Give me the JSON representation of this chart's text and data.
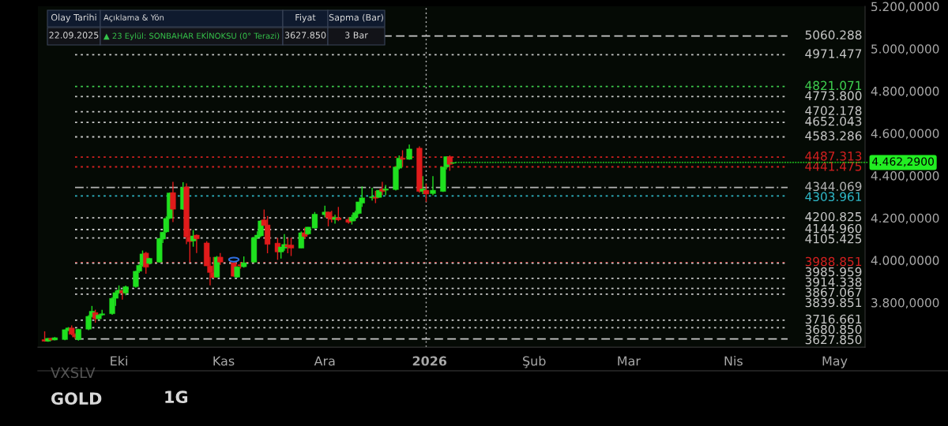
{
  "chart_data": {
    "type": "candlestick",
    "x": [
      "2025-09-09",
      "2025-09-10",
      "2025-09-11",
      "2025-09-12",
      "2025-09-15",
      "2025-09-16",
      "2025-09-17",
      "2025-09-18",
      "2025-09-19",
      "2025-09-22",
      "2025-09-23",
      "2025-09-24",
      "2025-09-25",
      "2025-09-26",
      "2025-09-29",
      "2025-09-30",
      "2025-10-01",
      "2025-10-02",
      "2025-10-03",
      "2025-10-06",
      "2025-10-07",
      "2025-10-08",
      "2025-10-09",
      "2025-10-10",
      "2025-10-13",
      "2025-10-14",
      "2025-10-15",
      "2025-10-16",
      "2025-10-17",
      "2025-10-20",
      "2025-10-21",
      "2025-10-22",
      "2025-10-23",
      "2025-10-24",
      "2025-10-27",
      "2025-10-28",
      "2025-10-29",
      "2025-10-30",
      "2025-10-31",
      "2025-11-04",
      "2025-11-05",
      "2025-11-06",
      "2025-11-07",
      "2025-11-10",
      "2025-11-11",
      "2025-11-12",
      "2025-11-13",
      "2025-11-14",
      "2025-11-17",
      "2025-11-18",
      "2025-11-19",
      "2025-11-20",
      "2025-11-21",
      "2025-11-24",
      "2025-11-25",
      "2025-11-26",
      "2025-11-28",
      "2025-12-01",
      "2025-12-02",
      "2025-12-03",
      "2025-12-04",
      "2025-12-05",
      "2025-12-08",
      "2025-12-09",
      "2025-12-10",
      "2025-12-11",
      "2025-12-12",
      "2025-12-15",
      "2025-12-16",
      "2025-12-17",
      "2025-12-18",
      "2025-12-19",
      "2025-12-22",
      "2025-12-23",
      "2025-12-24",
      "2025-12-26",
      "2025-12-29",
      "2025-12-30",
      "2025-12-31",
      "2026-01-02",
      "2026-01-05",
      "2026-01-06",
      "2026-01-07",
      "2026-01-08"
    ],
    "ohlc": [
      [
        3625,
        3664,
        3615,
        3617
      ],
      [
        3617,
        3632,
        3615,
        3631
      ],
      [
        3631,
        3634,
        3620,
        3623
      ],
      [
        3623,
        3637,
        3621,
        3634
      ],
      [
        3625,
        3672,
        3622,
        3672
      ],
      [
        3668,
        3684,
        3665,
        3680
      ],
      [
        3680,
        3692,
        3645,
        3650
      ],
      [
        3650,
        3655,
        3628,
        3637
      ],
      [
        3625,
        3676,
        3620,
        3674
      ],
      [
        3674,
        3740,
        3670,
        3735
      ],
      [
        3735,
        3784,
        3730,
        3759
      ],
      [
        3753,
        3766,
        3705,
        3723
      ],
      [
        3723,
        3745,
        3718,
        3741
      ],
      [
        3741,
        3766,
        3738,
        3747
      ],
      [
        3747,
        3825,
        3742,
        3820
      ],
      [
        3820,
        3857,
        3784,
        3847
      ],
      [
        3847,
        3881,
        3842,
        3859
      ],
      [
        3857,
        3860,
        3814,
        3845
      ],
      [
        3845,
        3880,
        3835,
        3875
      ],
      [
        3875,
        3950,
        3870,
        3948
      ],
      [
        3948,
        3980,
        3940,
        3976
      ],
      [
        3976,
        4046,
        3970,
        4030
      ],
      [
        4034,
        4040,
        3936,
        3967
      ],
      [
        3985,
        4012,
        3980,
        4009
      ],
      [
        3991,
        4105,
        3988,
        4103
      ],
      [
        4100,
        4134,
        4082,
        4133
      ],
      [
        4134,
        4207,
        4130,
        4198
      ],
      [
        4198,
        4320,
        4195,
        4318
      ],
      [
        4320,
        4371,
        4180,
        4241
      ],
      [
        4241,
        4369,
        4238,
        4344
      ],
      [
        4347,
        4363,
        4076,
        4110
      ],
      [
        4110,
        4149,
        3991,
        4088
      ],
      [
        4091,
        4143,
        4064,
        4115
      ],
      [
        4119,
        4122,
        4034,
        4101
      ],
      [
        4082,
        4090,
        3973,
        3973
      ],
      [
        3973,
        4015,
        3881,
        3942
      ],
      [
        3942,
        4015,
        3915,
        3918
      ],
      [
        3920,
        4020,
        3918,
        4015
      ],
      [
        4015,
        4034,
        3978,
        3991
      ],
      [
        3988,
        3990,
        3923,
        3924
      ],
      [
        3920,
        3972,
        3918,
        3969
      ],
      [
        3979,
        3991,
        3960,
        3973
      ],
      [
        3969,
        4018,
        3965,
        3988
      ],
      [
        3991,
        4110,
        3988,
        4107
      ],
      [
        4107,
        4137,
        4100,
        4119
      ],
      [
        4115,
        4190,
        4110,
        4186
      ],
      [
        4191,
        4240,
        4164,
        4164
      ],
      [
        4167,
        4209,
        4033,
        4075
      ],
      [
        4081,
        4106,
        4002,
        4039
      ],
      [
        4039,
        4063,
        4008,
        4063
      ],
      [
        4057,
        4124,
        4045,
        4075
      ],
      [
        4072,
        4106,
        4033,
        4063
      ],
      [
        4072,
        4106,
        4020,
        4057
      ],
      [
        4057,
        4136,
        4057,
        4130
      ],
      [
        4130,
        4154,
        4100,
        4112
      ],
      [
        4124,
        4157,
        4120,
        4157
      ],
      [
        4152,
        4228,
        4150,
        4218
      ],
      [
        4215,
        4258,
        4203,
        4228
      ],
      [
        4228,
        4230,
        4160,
        4201
      ],
      [
        4206,
        4234,
        4179,
        4193
      ],
      [
        4193,
        4215,
        4173,
        4203
      ],
      [
        4201,
        4252,
        4185,
        4191
      ],
      [
        4193,
        4203,
        4173,
        4179
      ],
      [
        4185,
        4215,
        4169,
        4203
      ],
      [
        4201,
        4234,
        4185,
        4225
      ],
      [
        4221,
        4276,
        4218,
        4276
      ],
      [
        4270,
        4349,
        4252,
        4295
      ],
      [
        4295,
        4343,
        4282,
        4301
      ],
      [
        4298,
        4328,
        4270,
        4293
      ],
      [
        4297,
        4331,
        4295,
        4331
      ],
      [
        4337,
        4371,
        4307,
        4325
      ],
      [
        4331,
        4356,
        4307,
        4337
      ],
      [
        4334,
        4441,
        4330,
        4441
      ],
      [
        4435,
        4496,
        4429,
        4483
      ],
      [
        4483,
        4520,
        4441,
        4477
      ],
      [
        4477,
        4547,
        4475,
        4526
      ],
      [
        4530,
        4538,
        4319,
        4325
      ],
      [
        4325,
        4398,
        4313,
        4337
      ],
      [
        4331,
        4362,
        4276,
        4313
      ],
      [
        4315,
        4398,
        4307,
        4331
      ],
      [
        4325,
        4441,
        4323,
        4441
      ],
      [
        4441,
        4490,
        4429,
        4490
      ],
      [
        4490,
        4496,
        4423,
        4453
      ],
      [
        4459,
        4462,
        4455,
        4462
      ]
    ],
    "colors": [
      "#e01b1b",
      "#1fe01f",
      "#e01b1b",
      "#1fe01f",
      "#1fe01f",
      "#1fe01f",
      "#e01b1b",
      "#e01b1b",
      "#1fe01f",
      "#1fe01f",
      "#1fe01f",
      "#e01b1b",
      "#1fe01f",
      "#1fe01f",
      "#1fe01f",
      "#1fe01f",
      "#1fe01f",
      "#e01b1b",
      "#1fe01f",
      "#1fe01f",
      "#1fe01f",
      "#1fe01f",
      "#e01b1b",
      "#1fe01f",
      "#1fe01f",
      "#1fe01f",
      "#1fe01f",
      "#1fe01f",
      "#e01b1b",
      "#1fe01f",
      "#e01b1b",
      "#e01b1b",
      "#1fe01f",
      "#e01b1b",
      "#e01b1b",
      "#e01b1b",
      "#e01b1b",
      "#1fe01f",
      "#e01b1b",
      "#e01b1b",
      "#1fe01f",
      "#e01b1b",
      "#1fe01f",
      "#1fe01f",
      "#1fe01f",
      "#1fe01f",
      "#e01b1b",
      "#e01b1b",
      "#e01b1b",
      "#1fe01f",
      "#1fe01f",
      "#e01b1b",
      "#e01b1b",
      "#1fe01f",
      "#e01b1b",
      "#1fe01f",
      "#1fe01f",
      "#1fe01f",
      "#e01b1b",
      "#e01b1b",
      "#1fe01f",
      "#e01b1b",
      "#e01b1b",
      "#1fe01f",
      "#1fe01f",
      "#1fe01f",
      "#1fe01f",
      "#1fe01f",
      "#e01b1b",
      "#1fe01f",
      "#e01b1b",
      "#1fe01f",
      "#1fe01f",
      "#1fe01f",
      "#e01b1b",
      "#1fe01f",
      "#e01b1b",
      "#1fe01f",
      "#e01b1b",
      "#1fe01f",
      "#1fe01f",
      "#1fe01f",
      "#e01b1b",
      "#1fe01f"
    ],
    "xlim": [
      "2025-09-07",
      "2026-05-10"
    ],
    "xticks": [
      {
        "value": "2025-10-01",
        "label": "Eki"
      },
      {
        "value": "2025-11-01",
        "label": "Kas"
      },
      {
        "value": "2025-12-01",
        "label": "Ara"
      },
      {
        "value": "2026-01-01",
        "label": "2026"
      },
      {
        "value": "2026-02-01",
        "label": "Şub"
      },
      {
        "value": "2026-03-01",
        "label": "Mar"
      },
      {
        "value": "2026-04-01",
        "label": "Nis"
      },
      {
        "value": "2026-05-01",
        "label": "May"
      }
    ],
    "ylim": [
      3589,
      5200
    ],
    "yticks": [
      {
        "value": 3800,
        "label": "3.800,0000"
      },
      {
        "value": 4000,
        "label": "4.000,0000"
      },
      {
        "value": 4200,
        "label": "4.200,0000"
      },
      {
        "value": 4400,
        "label": "4.400,0000"
      },
      {
        "value": 4600,
        "label": "4.600,0000"
      },
      {
        "value": 4800,
        "label": "4.800,0000"
      },
      {
        "value": 5000,
        "label": "5.000,0000"
      },
      {
        "value": 5200,
        "label": "5.200,0000"
      }
    ],
    "grid": false,
    "ref_lines": [
      {
        "axis": "y",
        "value": 5060.288,
        "label": "5060.288",
        "color": "#c8c8c8",
        "line_style": "dashed"
      },
      {
        "axis": "y",
        "value": 4971.477,
        "label": "4971.477",
        "color": "#c8c8c8",
        "line_style": "dotted"
      },
      {
        "axis": "y",
        "value": 4821.071,
        "label": "4821.071",
        "color": "#3fcf4f",
        "line_style": "dotted"
      },
      {
        "axis": "y",
        "value": 4773.8,
        "label": "4773.800",
        "color": "#c8c8c8",
        "line_style": "dotted"
      },
      {
        "axis": "y",
        "value": 4702.178,
        "label": "4702.178",
        "color": "#c8c8c8",
        "line_style": "dotted"
      },
      {
        "axis": "y",
        "value": 4652.043,
        "label": "4652.043",
        "color": "#c8c8c8",
        "line_style": "dotted"
      },
      {
        "axis": "y",
        "value": 4583.286,
        "label": "4583.286",
        "color": "#c8c8c8",
        "line_style": "dotted"
      },
      {
        "axis": "y",
        "value": 4487.313,
        "label": "4487.313",
        "color": "#d42020",
        "line_style": "dotted"
      },
      {
        "axis": "y",
        "value": 4441.475,
        "label": "4441.475",
        "color": "#d42020",
        "line_style": "dotted"
      },
      {
        "axis": "y",
        "value": 4344.069,
        "label": "4344.069",
        "color": "#b4b4b4",
        "line_style": "dashdot"
      },
      {
        "axis": "y",
        "value": 4303.961,
        "label": "4303.961",
        "color": "#2fb8c8",
        "line_style": "dotted"
      },
      {
        "axis": "y",
        "value": 4200.825,
        "label": "4200.825",
        "color": "#c8c8c8",
        "line_style": "dotted"
      },
      {
        "axis": "y",
        "value": 4144.96,
        "label": "4144.960",
        "color": "#c8c8c8",
        "line_style": "dotted"
      },
      {
        "axis": "y",
        "value": 4105.425,
        "label": "4105.425",
        "color": "#c8c8c8",
        "line_style": "dotted"
      },
      {
        "axis": "y",
        "value": 3988.851,
        "label": "3988.851",
        "color": "#d42020",
        "line_style": "dotted"
      },
      {
        "axis": "y",
        "value": 3985.959,
        "label": "3985.959",
        "color": "#c8c8c8",
        "line_style": "dotted"
      },
      {
        "axis": "y",
        "value": 3914.338,
        "label": "3914.338",
        "color": "#c8c8c8",
        "line_style": "dotted"
      },
      {
        "axis": "y",
        "value": 3867.067,
        "label": "3867.067",
        "color": "#c8c8c8",
        "line_style": "dotted"
      },
      {
        "axis": "y",
        "value": 3839.851,
        "label": "3839.851",
        "color": "#c8c8c8",
        "line_style": "dotted"
      },
      {
        "axis": "y",
        "value": 3716.661,
        "label": "3716.661",
        "color": "#c8c8c8",
        "line_style": "dotted"
      },
      {
        "axis": "y",
        "value": 3680.85,
        "label": "3680.850",
        "color": "#c8c8c8",
        "line_style": "dotted"
      },
      {
        "axis": "y",
        "value": 3627.85,
        "label": "3627.850",
        "color": "#c8c8c8",
        "line_style": "dashed"
      },
      {
        "axis": "x",
        "value": "2025-12-31",
        "color": "#b4b4b4",
        "line_style": "dotted"
      }
    ],
    "annotations": [
      "Olay Tarihi",
      "Açıklama & Yön",
      "Fiyat",
      "Sapma (Bar)",
      "22.09.2025",
      "▲ 23 Eylül: SONBAHAR EKİNOKSU (0° Terazi)",
      "3627.850",
      "3 Bar",
      "VXSLV",
      "GOLD",
      "1G",
      {
        "text": "4.462,2900",
        "x": "2026-01-08",
        "y": 4462.29
      }
    ]
  }
}
